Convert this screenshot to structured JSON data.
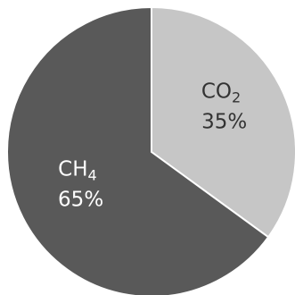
{
  "chart_data": {
    "type": "pie",
    "slices": [
      {
        "name": "CO2",
        "label_main": "CO",
        "label_sub": "2",
        "value": 35,
        "value_label": "35%",
        "color": "#c6c6c6",
        "text_color": "#333333"
      },
      {
        "name": "CH4",
        "label_main": "CH",
        "label_sub": "4",
        "value": 65,
        "value_label": "65%",
        "color": "#595959",
        "text_color": "#ffffff"
      }
    ],
    "start_angle_deg": 0,
    "direction": "clockwise",
    "edge_color": "#ffffff"
  }
}
